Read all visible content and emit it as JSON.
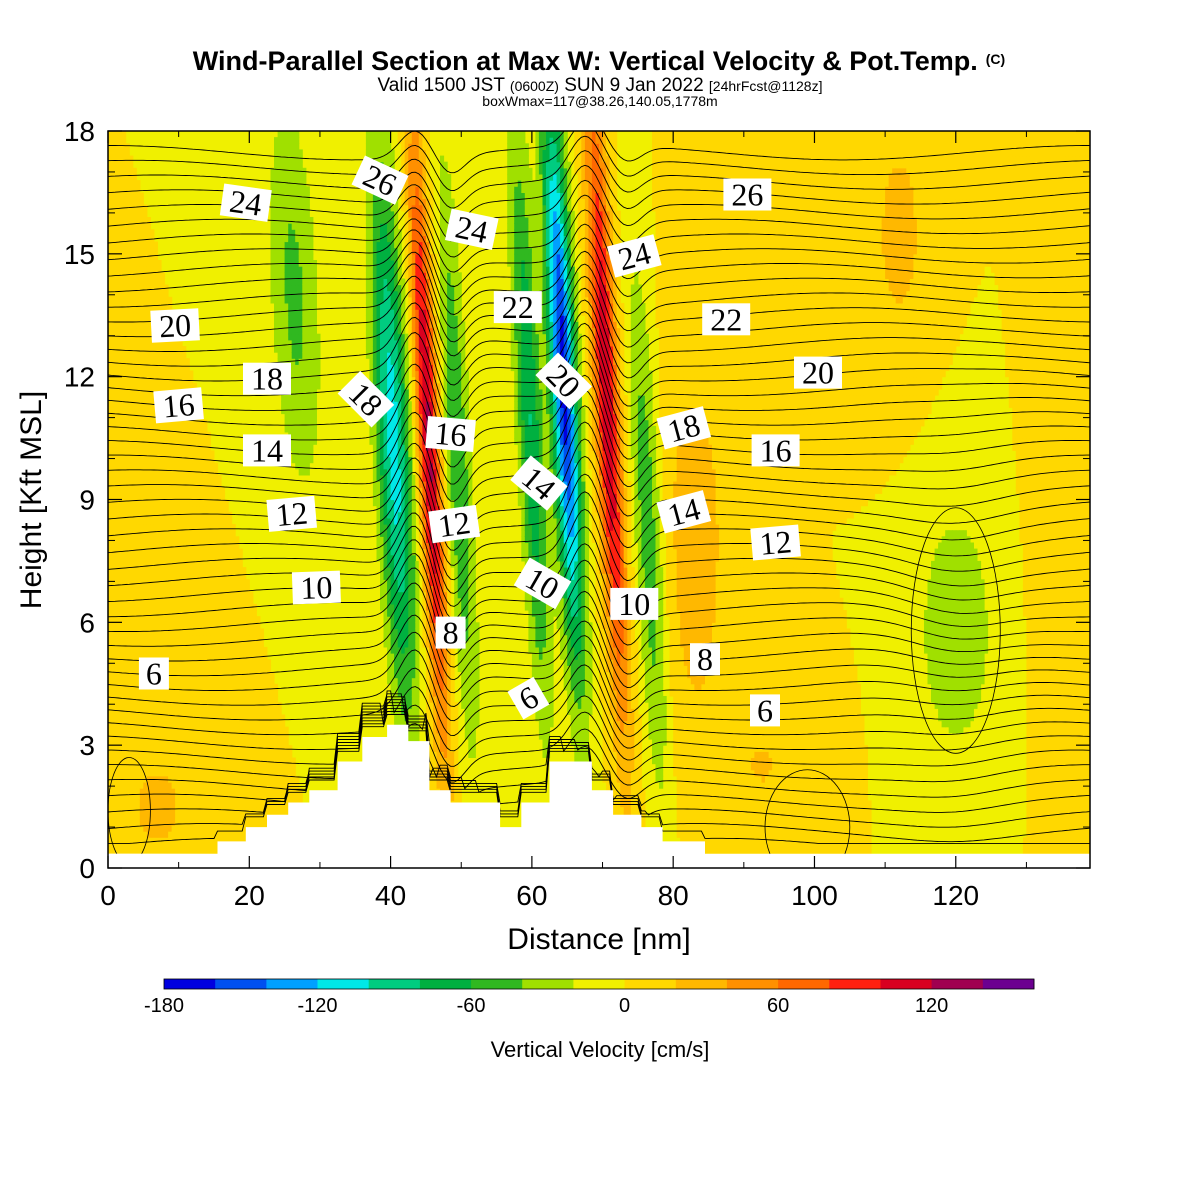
{
  "chart_data": {
    "type": "heatmap",
    "title": "Wind-Parallel Section at Max W: Vertical Velocity & Pot.Temp.",
    "title_mark": "(C)",
    "subtitle_parts": [
      "Valid 1500 JST ",
      "(0600Z)",
      " SUN 9 Jan 2022 ",
      "[24hrFcst@1128z]"
    ],
    "subtitle2": "boxWmax=117@38.26,140.05,1778m",
    "xlabel": "Distance [nm]",
    "ylabel": "Height [Kft MSL]",
    "xlim": [
      0,
      139
    ],
    "ylim": [
      0,
      18
    ],
    "xticks": [
      0,
      20,
      40,
      60,
      80,
      100,
      120
    ],
    "yticks": [
      0,
      3,
      6,
      9,
      12,
      15,
      18
    ],
    "colorbar": {
      "label": "Vertical Velocity [cm/s]",
      "ticks": [
        -180,
        -120,
        -60,
        0,
        60,
        120
      ],
      "levels": [
        -180,
        -160,
        -140,
        -120,
        -100,
        -80,
        -60,
        -40,
        -20,
        0,
        20,
        40,
        60,
        80,
        100,
        120,
        140,
        160
      ],
      "colors": [
        "#0000e0",
        "#0050f0",
        "#00a0ff",
        "#00e8e8",
        "#00cc80",
        "#00b040",
        "#30b820",
        "#a0e000",
        "#f0f000",
        "#ffd800",
        "#ffb800",
        "#ff9000",
        "#ff6800",
        "#ff2010",
        "#d80020",
        "#a00050",
        "#6c0090"
      ]
    },
    "vertical_velocity_features": [
      {
        "x": 40.5,
        "z": 10.0,
        "w": -110,
        "desc": "downdraft"
      },
      {
        "x": 45.5,
        "z": 10.0,
        "w": 120,
        "desc": "updraft"
      },
      {
        "x": 49.5,
        "z": 10.0,
        "w": -60,
        "desc": "downdraft"
      },
      {
        "x": 65.0,
        "z": 12.0,
        "w": -165,
        "desc": "downdraft"
      },
      {
        "x": 71.0,
        "z": 11.0,
        "w": 115,
        "desc": "updraft"
      },
      {
        "x": 120.0,
        "z": 6.0,
        "w": -30,
        "desc": "weak downdraft"
      }
    ],
    "terrain_profile": [
      [
        0,
        0.35
      ],
      [
        15.5,
        0.35
      ],
      [
        15.5,
        0.65
      ],
      [
        19.5,
        0.65
      ],
      [
        19.5,
        1.0
      ],
      [
        22.5,
        1.0
      ],
      [
        22.5,
        1.3
      ],
      [
        25.5,
        1.3
      ],
      [
        25.5,
        1.6
      ],
      [
        28.5,
        1.6
      ],
      [
        28.5,
        1.9
      ],
      [
        32.5,
        1.9
      ],
      [
        32.5,
        2.6
      ],
      [
        36,
        2.6
      ],
      [
        36,
        3.2
      ],
      [
        39.5,
        3.2
      ],
      [
        39.5,
        3.5
      ],
      [
        42.5,
        3.5
      ],
      [
        42.5,
        3.1
      ],
      [
        45.5,
        3.1
      ],
      [
        45.5,
        1.9
      ],
      [
        48.5,
        1.9
      ],
      [
        48.5,
        1.6
      ],
      [
        55.5,
        1.6
      ],
      [
        55.5,
        1.0
      ],
      [
        58.5,
        1.0
      ],
      [
        58.5,
        1.6
      ],
      [
        62.5,
        1.6
      ],
      [
        62.5,
        2.6
      ],
      [
        68.5,
        2.6
      ],
      [
        68.5,
        1.9
      ],
      [
        71.5,
        1.9
      ],
      [
        71.5,
        1.3
      ],
      [
        75.5,
        1.3
      ],
      [
        75.5,
        1.0
      ],
      [
        78.5,
        1.0
      ],
      [
        78.5,
        0.65
      ],
      [
        84.5,
        0.65
      ],
      [
        84.5,
        0.35
      ],
      [
        139,
        0.35
      ]
    ],
    "contour_labels": [
      {
        "text": "6",
        "x": 6.5,
        "z": 4.75,
        "rot": 0
      },
      {
        "text": "10",
        "x": 29.5,
        "z": 6.85,
        "rot": -2
      },
      {
        "text": "12",
        "x": 26,
        "z": 8.65,
        "rot": -5
      },
      {
        "text": "14",
        "x": 22.5,
        "z": 10.2,
        "rot": 0
      },
      {
        "text": "16",
        "x": 10,
        "z": 11.3,
        "rot": -5
      },
      {
        "text": "18",
        "x": 22.5,
        "z": 11.95,
        "rot": 0
      },
      {
        "text": "20",
        "x": 9.5,
        "z": 13.25,
        "rot": -3
      },
      {
        "text": "24",
        "x": 19.5,
        "z": 16.25,
        "rot": 8
      },
      {
        "text": "26",
        "x": 38.5,
        "z": 16.8,
        "rot": 25
      },
      {
        "text": "18",
        "x": 36.5,
        "z": 11.45,
        "rot": 45
      },
      {
        "text": "24",
        "x": 51.5,
        "z": 15.6,
        "rot": 12
      },
      {
        "text": "22",
        "x": 58,
        "z": 13.7,
        "rot": 0
      },
      {
        "text": "16",
        "x": 48.5,
        "z": 10.6,
        "rot": 5
      },
      {
        "text": "12",
        "x": 49,
        "z": 8.4,
        "rot": -8
      },
      {
        "text": "8",
        "x": 48.5,
        "z": 5.75,
        "rot": 0
      },
      {
        "text": "20",
        "x": 64.5,
        "z": 11.9,
        "rot": 45
      },
      {
        "text": "14",
        "x": 61,
        "z": 9.4,
        "rot": 40
      },
      {
        "text": "10",
        "x": 61.5,
        "z": 6.95,
        "rot": 30
      },
      {
        "text": "6",
        "x": 59.5,
        "z": 4.15,
        "rot": -30
      },
      {
        "text": "24",
        "x": 74.5,
        "z": 14.95,
        "rot": -15
      },
      {
        "text": "10",
        "x": 74.5,
        "z": 6.45,
        "rot": 0
      },
      {
        "text": "18",
        "x": 81.5,
        "z": 10.75,
        "rot": -15
      },
      {
        "text": "14",
        "x": 81.5,
        "z": 8.7,
        "rot": -15
      },
      {
        "text": "8",
        "x": 84.5,
        "z": 5.1,
        "rot": 0
      },
      {
        "text": "26",
        "x": 90.5,
        "z": 16.45,
        "rot": 0
      },
      {
        "text": "22",
        "x": 87.5,
        "z": 13.4,
        "rot": 0
      },
      {
        "text": "16",
        "x": 94.5,
        "z": 10.2,
        "rot": 0
      },
      {
        "text": "12",
        "x": 94.5,
        "z": 7.95,
        "rot": -5
      },
      {
        "text": "6",
        "x": 93,
        "z": 3.85,
        "rot": 0
      },
      {
        "text": "20",
        "x": 100.5,
        "z": 12.1,
        "rot": 0
      }
    ]
  }
}
